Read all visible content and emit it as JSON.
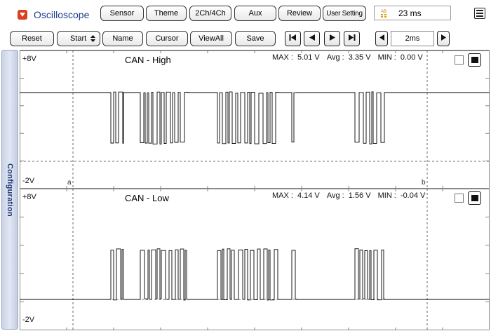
{
  "app": {
    "title": "Oscilloscope"
  },
  "toolbar_top": [
    {
      "name": "sensor-button",
      "label": "Sensor"
    },
    {
      "name": "theme-button",
      "label": "Theme"
    },
    {
      "name": "channels-button",
      "label": "2Ch/4Ch"
    },
    {
      "name": "aux-button",
      "label": "Aux"
    },
    {
      "name": "review-button",
      "label": "Review"
    },
    {
      "name": "user-setting-button",
      "label": "User Setting"
    }
  ],
  "status": {
    "sample_time": "23 ms",
    "timer_icon": "ab-timer-icon"
  },
  "toolbar_second": [
    {
      "name": "reset-button",
      "label": "Reset"
    },
    {
      "name": "start-button",
      "label": "Start"
    },
    {
      "name": "name-button",
      "label": "Name"
    },
    {
      "name": "cursor-button",
      "label": "Cursor"
    },
    {
      "name": "viewall-button",
      "label": "ViewAll"
    },
    {
      "name": "save-button",
      "label": "Save"
    }
  ],
  "timebase": {
    "value": "2ms"
  },
  "side_tab": {
    "label": "Configuration"
  },
  "cursors": {
    "a": "a",
    "b": "b"
  },
  "channels": [
    {
      "title": "CAN - High",
      "scale_top": "+8V",
      "scale_bottom": "-2V",
      "max_label": "MAX",
      "max_value": "5.01 V",
      "avg_label": "Avg",
      "avg_value": "3.35 V",
      "min_label": "MIN",
      "min_value": "0.00 V"
    },
    {
      "title": "CAN - Low",
      "scale_top": "+8V",
      "scale_bottom": "-2V",
      "max_label": "MAX",
      "max_value": "4.14 V",
      "avg_label": "Avg",
      "avg_value": "1.56 V",
      "min_label": "MIN",
      "min_value": "-0.04 V"
    }
  ],
  "colors": {
    "title_blue": "#1c3e8c",
    "menu_red": "#d9401f",
    "side_tab_text": "#1e3574"
  }
}
